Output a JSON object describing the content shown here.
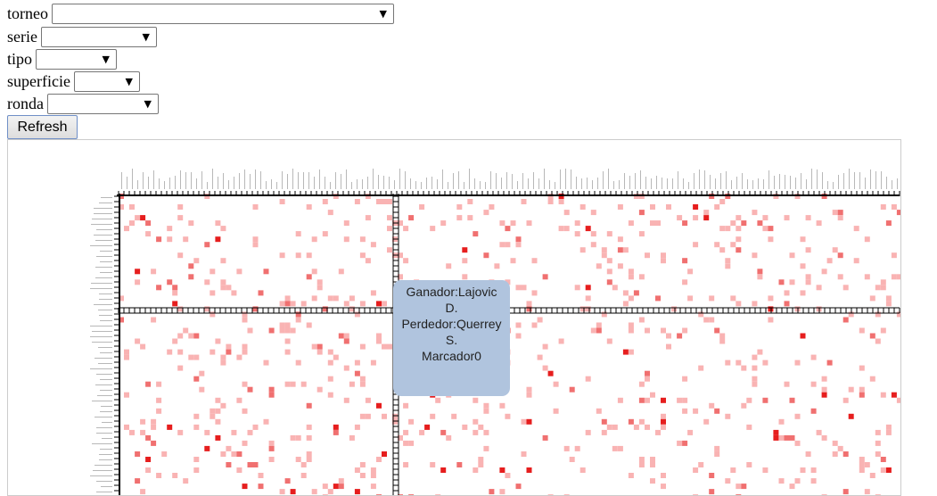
{
  "filters": {
    "torneo": {
      "label": "torneo",
      "value": ""
    },
    "serie": {
      "label": "serie",
      "value": ""
    },
    "tipo": {
      "label": "tipo",
      "value": ""
    },
    "superficie": {
      "label": "superficie",
      "value": ""
    },
    "ronda": {
      "label": "ronda",
      "value": ""
    }
  },
  "refresh_label": "Refresh",
  "tooltip": {
    "ganador": "Ganador:Lajovic D.",
    "perdedor": "Perdedor:Querrey S.",
    "marcador": "Marcador0"
  },
  "colors": {
    "light_cell": "#f9b3b3",
    "mid_cell": "#f07070",
    "dark_cell": "#e61e1e",
    "tooltip_bg": "#b0c4de"
  }
}
